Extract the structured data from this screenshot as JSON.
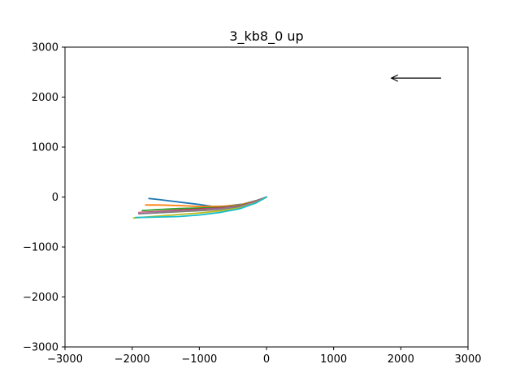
{
  "chart_data": {
    "type": "line",
    "title": "3_kb8_0 up",
    "xlabel": "",
    "ylabel": "",
    "xlim": [
      -3000,
      3000
    ],
    "ylim": [
      -3000,
      3000
    ],
    "xticks": [
      -3000,
      -2000,
      -1000,
      0,
      1000,
      2000,
      3000
    ],
    "yticks": [
      -3000,
      -2000,
      -1000,
      0,
      1000,
      2000,
      3000
    ],
    "grid": false,
    "legend": "none",
    "series": [
      {
        "color": "#1f77b4",
        "x": [
          0,
          -150,
          -350,
          -600,
          -800,
          -1000,
          -1300,
          -1600,
          -1750
        ],
        "y": [
          0,
          -70,
          -140,
          -180,
          -190,
          -150,
          -100,
          -50,
          -30
        ]
      },
      {
        "color": "#ff7f0e",
        "x": [
          0,
          -150,
          -400,
          -700,
          -1000,
          -1300,
          -1600,
          -1800
        ],
        "y": [
          0,
          -80,
          -160,
          -190,
          -190,
          -170,
          -160,
          -160
        ]
      },
      {
        "color": "#2ca02c",
        "x": [
          0,
          -150,
          -400,
          -700,
          -1000,
          -1300,
          -1600,
          -1850
        ],
        "y": [
          0,
          -90,
          -170,
          -210,
          -220,
          -230,
          -250,
          -270
        ]
      },
      {
        "color": "#d62728",
        "x": [
          0,
          -150,
          -400,
          -700,
          -1000,
          -1300,
          -1600,
          -1900
        ],
        "y": [
          0,
          -90,
          -180,
          -220,
          -240,
          -260,
          -290,
          -310
        ]
      },
      {
        "color": "#9467bd",
        "x": [
          0,
          -150,
          -400,
          -700,
          -1000,
          -1300,
          -1600,
          -1900
        ],
        "y": [
          0,
          -95,
          -185,
          -230,
          -250,
          -270,
          -300,
          -320
        ]
      },
      {
        "color": "#8c564b",
        "x": [
          0,
          -150,
          -400,
          -700,
          -1000,
          -1300,
          -1600,
          -1900
        ],
        "y": [
          0,
          -100,
          -190,
          -240,
          -260,
          -280,
          -310,
          -330
        ]
      },
      {
        "color": "#e377c2",
        "x": [
          0,
          -150,
          -400,
          -700,
          -1000,
          -1300,
          -1600,
          -1900
        ],
        "y": [
          0,
          -100,
          -195,
          -245,
          -270,
          -290,
          -310,
          -320
        ]
      },
      {
        "color": "#7f7f7f",
        "x": [
          0,
          -150,
          -400,
          -700,
          -1000,
          -1300,
          -1600,
          -1900
        ],
        "y": [
          0,
          -105,
          -200,
          -250,
          -275,
          -295,
          -315,
          -335
        ]
      },
      {
        "color": "#bcbd22",
        "x": [
          0,
          -150,
          -400,
          -700,
          -1000,
          -1300,
          -1600,
          -1980
        ],
        "y": [
          0,
          -110,
          -220,
          -280,
          -320,
          -350,
          -380,
          -420
        ]
      },
      {
        "color": "#17becf",
        "x": [
          0,
          -150,
          -400,
          -700,
          -1000,
          -1300,
          -1600,
          -1950
        ],
        "y": [
          0,
          -115,
          -235,
          -310,
          -360,
          -390,
          -400,
          -410
        ]
      }
    ],
    "annotation": {
      "type": "arrow",
      "from": [
        2600,
        2380
      ],
      "to": [
        1860,
        2380
      ],
      "color": "#000000"
    }
  }
}
